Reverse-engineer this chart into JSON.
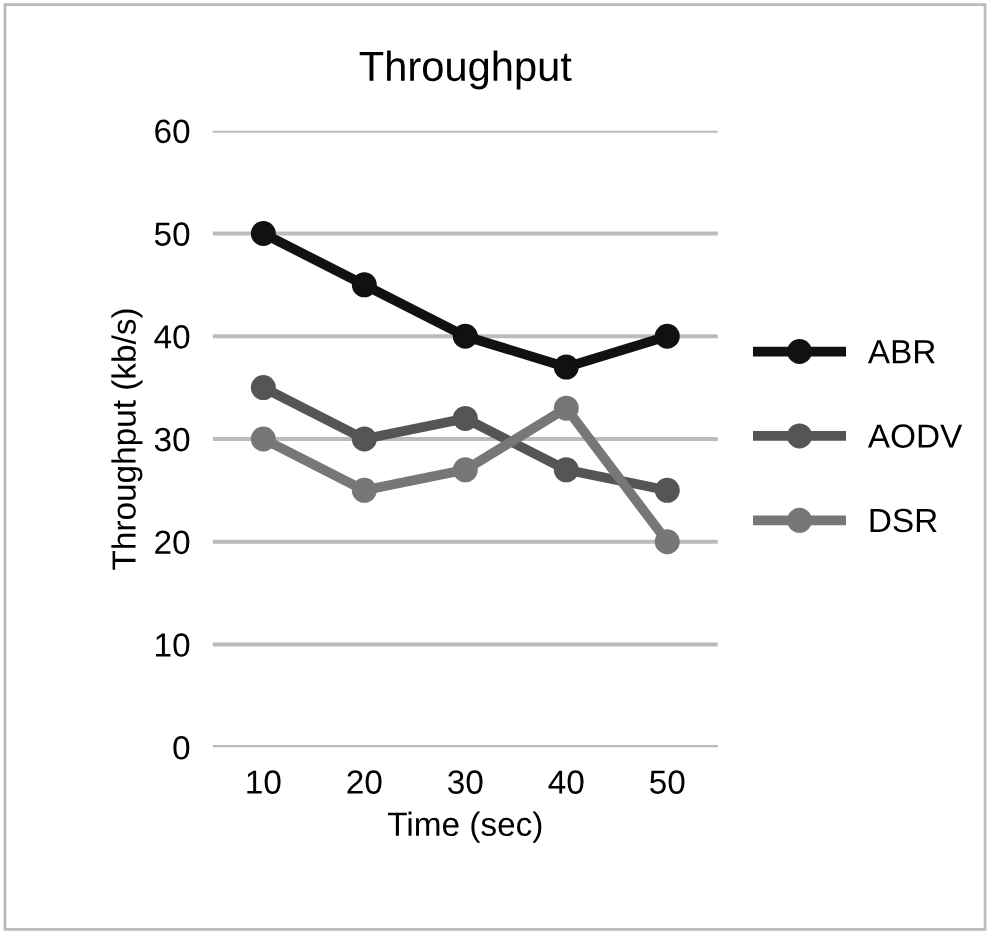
{
  "chart_data": {
    "type": "line",
    "title": "Throughput",
    "xlabel": "Time (sec)",
    "ylabel": "Throughput (kb/s)",
    "categories": [
      "10",
      "20",
      "30",
      "40",
      "50"
    ],
    "series": [
      {
        "name": "ABR",
        "color": "#111111",
        "values": [
          50,
          45,
          40,
          37,
          40
        ]
      },
      {
        "name": "AODV",
        "color": "#555555",
        "values": [
          35,
          30,
          32,
          27,
          25
        ]
      },
      {
        "name": "DSR",
        "color": "#777777",
        "values": [
          30,
          25,
          27,
          33,
          20
        ]
      }
    ],
    "ylim": [
      0,
      60
    ],
    "yticks": [
      0,
      10,
      20,
      30,
      40,
      50,
      60
    ],
    "grid": "y",
    "legend": "right",
    "marker": "circle",
    "line_style": "solid"
  }
}
